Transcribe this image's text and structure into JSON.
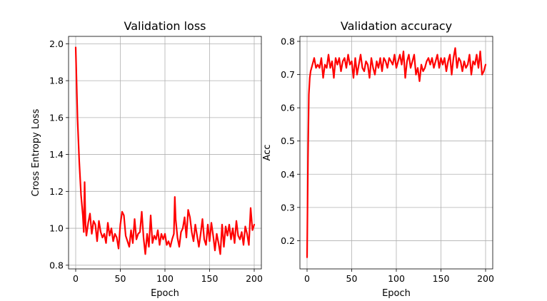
{
  "chart_data": [
    {
      "type": "line",
      "title": "Validation loss",
      "xlabel": "Epoch",
      "ylabel": "Cross Entropy Loss",
      "xlim": [
        -8,
        208
      ],
      "ylim": [
        0.78,
        2.04
      ],
      "xticks": [
        0,
        50,
        100,
        150,
        200
      ],
      "yticks": [
        0.8,
        1.0,
        1.2,
        1.4,
        1.6,
        1.8,
        2.0
      ],
      "ytick_labels": [
        "0.8",
        "1.0",
        "1.2",
        "1.4",
        "1.6",
        "1.8",
        "2.0"
      ],
      "grid": true,
      "series": [
        {
          "color": "#ff0000",
          "x": [
            0,
            2,
            4,
            6,
            8,
            9,
            10,
            11,
            12,
            14,
            16,
            18,
            20,
            22,
            24,
            26,
            28,
            30,
            32,
            34,
            36,
            38,
            40,
            42,
            44,
            46,
            48,
            50,
            52,
            54,
            56,
            58,
            60,
            62,
            64,
            66,
            68,
            70,
            72,
            74,
            76,
            78,
            80,
            82,
            84,
            86,
            88,
            90,
            92,
            94,
            96,
            98,
            100,
            102,
            104,
            106,
            108,
            110,
            111,
            112,
            114,
            116,
            118,
            120,
            122,
            124,
            126,
            128,
            130,
            132,
            134,
            136,
            138,
            140,
            142,
            144,
            146,
            148,
            150,
            152,
            154,
            156,
            158,
            160,
            162,
            164,
            166,
            168,
            170,
            172,
            174,
            176,
            178,
            180,
            182,
            184,
            186,
            188,
            190,
            192,
            194,
            196,
            198,
            200
          ],
          "y": [
            1.98,
            1.6,
            1.36,
            1.18,
            1.07,
            0.98,
            1.25,
            1.02,
            0.96,
            1.03,
            1.08,
            0.97,
            1.04,
            1.02,
            0.93,
            1.04,
            0.98,
            0.95,
            0.97,
            0.92,
            1.03,
            0.96,
            1.0,
            0.93,
            0.97,
            0.95,
            0.89,
            1.02,
            1.09,
            1.07,
            0.96,
            0.93,
            0.9,
            0.99,
            0.92,
            1.05,
            0.94,
            0.97,
            0.98,
            1.09,
            0.95,
            0.86,
            0.97,
            0.9,
            1.07,
            0.92,
            0.96,
            0.94,
            0.99,
            0.91,
            0.97,
            0.94,
            0.97,
            0.91,
            0.93,
            0.9,
            0.94,
            0.97,
            1.17,
            1.05,
            0.95,
            0.9,
            0.98,
            1.0,
            1.06,
            0.95,
            1.1,
            1.06,
            0.98,
            0.93,
            1.02,
            0.96,
            0.9,
            0.97,
            1.05,
            0.94,
            0.91,
            1.02,
            0.93,
            1.03,
            0.96,
            0.88,
            0.97,
            0.92,
            0.86,
            1.02,
            0.9,
            1.01,
            0.96,
            1.02,
            0.94,
            1.0,
            0.92,
            1.04,
            0.96,
            0.94,
            0.98,
            0.91,
            1.01,
            0.97,
            0.91,
            1.11,
            0.99,
            1.02
          ]
        }
      ]
    },
    {
      "type": "line",
      "title": "Validation accuracy",
      "xlabel": "Epoch",
      "ylabel": "Acc",
      "xlim": [
        -8,
        208
      ],
      "ylim": [
        0.115,
        0.815
      ],
      "xticks": [
        0,
        50,
        100,
        150,
        200
      ],
      "yticks": [
        0.2,
        0.3,
        0.4,
        0.5,
        0.6,
        0.7,
        0.8
      ],
      "ytick_labels": [
        "0.2",
        "0.3",
        "0.4",
        "0.5",
        "0.6",
        "0.7",
        "0.8"
      ],
      "grid": true,
      "series": [
        {
          "color": "#ff0000",
          "x": [
            0,
            1,
            2,
            3,
            4,
            6,
            8,
            10,
            12,
            14,
            16,
            18,
            20,
            22,
            24,
            26,
            28,
            30,
            32,
            34,
            36,
            38,
            40,
            42,
            44,
            46,
            48,
            50,
            52,
            54,
            56,
            58,
            60,
            62,
            64,
            66,
            68,
            70,
            72,
            74,
            76,
            78,
            80,
            82,
            84,
            86,
            88,
            90,
            92,
            94,
            96,
            98,
            100,
            102,
            104,
            106,
            108,
            110,
            112,
            114,
            116,
            118,
            120,
            122,
            124,
            126,
            128,
            130,
            132,
            134,
            136,
            138,
            140,
            142,
            144,
            146,
            148,
            150,
            152,
            154,
            156,
            158,
            160,
            162,
            164,
            166,
            168,
            170,
            172,
            174,
            176,
            178,
            180,
            182,
            184,
            186,
            188,
            190,
            192,
            194,
            196,
            198,
            200
          ],
          "y": [
            0.15,
            0.45,
            0.64,
            0.69,
            0.71,
            0.73,
            0.75,
            0.72,
            0.73,
            0.72,
            0.75,
            0.69,
            0.73,
            0.72,
            0.76,
            0.72,
            0.74,
            0.69,
            0.75,
            0.73,
            0.75,
            0.71,
            0.74,
            0.75,
            0.72,
            0.76,
            0.73,
            0.74,
            0.69,
            0.75,
            0.7,
            0.73,
            0.76,
            0.72,
            0.71,
            0.74,
            0.73,
            0.69,
            0.75,
            0.72,
            0.7,
            0.74,
            0.72,
            0.75,
            0.71,
            0.75,
            0.74,
            0.72,
            0.75,
            0.74,
            0.73,
            0.76,
            0.72,
            0.74,
            0.76,
            0.73,
            0.77,
            0.69,
            0.74,
            0.76,
            0.72,
            0.74,
            0.76,
            0.7,
            0.72,
            0.68,
            0.73,
            0.71,
            0.72,
            0.74,
            0.75,
            0.73,
            0.75,
            0.72,
            0.74,
            0.76,
            0.72,
            0.75,
            0.73,
            0.75,
            0.71,
            0.74,
            0.76,
            0.7,
            0.75,
            0.78,
            0.72,
            0.75,
            0.74,
            0.71,
            0.74,
            0.72,
            0.73,
            0.76,
            0.7,
            0.74,
            0.73,
            0.76,
            0.72,
            0.77,
            0.7,
            0.71,
            0.73
          ]
        }
      ]
    }
  ]
}
